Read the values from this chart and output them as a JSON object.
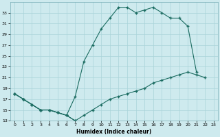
{
  "xlabel": "Humidex (Indice chaleur)",
  "xlim": [
    -0.5,
    23.5
  ],
  "ylim": [
    13,
    35
  ],
  "yticks": [
    13,
    15,
    17,
    19,
    21,
    23,
    25,
    27,
    29,
    31,
    33
  ],
  "xticks": [
    0,
    1,
    2,
    3,
    4,
    5,
    6,
    7,
    8,
    9,
    10,
    11,
    12,
    13,
    14,
    15,
    16,
    17,
    18,
    19,
    20,
    21,
    22,
    23
  ],
  "bg_color": "#ceeaee",
  "line_color": "#1a6b60",
  "grid_color": "#aad4d9",
  "line1_x": [
    0,
    1,
    2,
    3,
    4,
    5,
    6,
    7,
    8,
    9,
    10,
    11,
    12,
    13,
    14,
    15,
    16,
    17,
    18,
    19,
    20,
    21
  ],
  "line1_y": [
    18,
    17,
    16,
    15,
    15,
    14.5,
    14,
    17.5,
    24,
    27,
    30,
    32,
    34,
    34,
    33,
    33.5,
    34,
    33,
    32,
    32,
    30.5,
    22
  ],
  "line2_x": [
    0,
    1,
    2,
    3,
    4,
    5,
    6,
    7,
    8,
    9,
    10,
    11,
    12,
    13,
    14,
    15,
    16,
    17,
    18,
    19,
    20,
    21,
    22
  ],
  "line2_y": [
    18,
    17,
    16,
    15,
    15,
    14.5,
    14,
    13,
    14,
    15,
    16,
    17,
    17.5,
    18,
    18.5,
    19,
    20,
    20.5,
    21,
    21.5,
    22,
    21.5,
    21
  ],
  "line3_x": [
    0,
    1,
    2,
    3,
    4,
    5,
    6,
    7
  ],
  "line3_y": [
    18,
    17,
    16,
    15,
    15,
    14.5,
    14,
    13
  ]
}
